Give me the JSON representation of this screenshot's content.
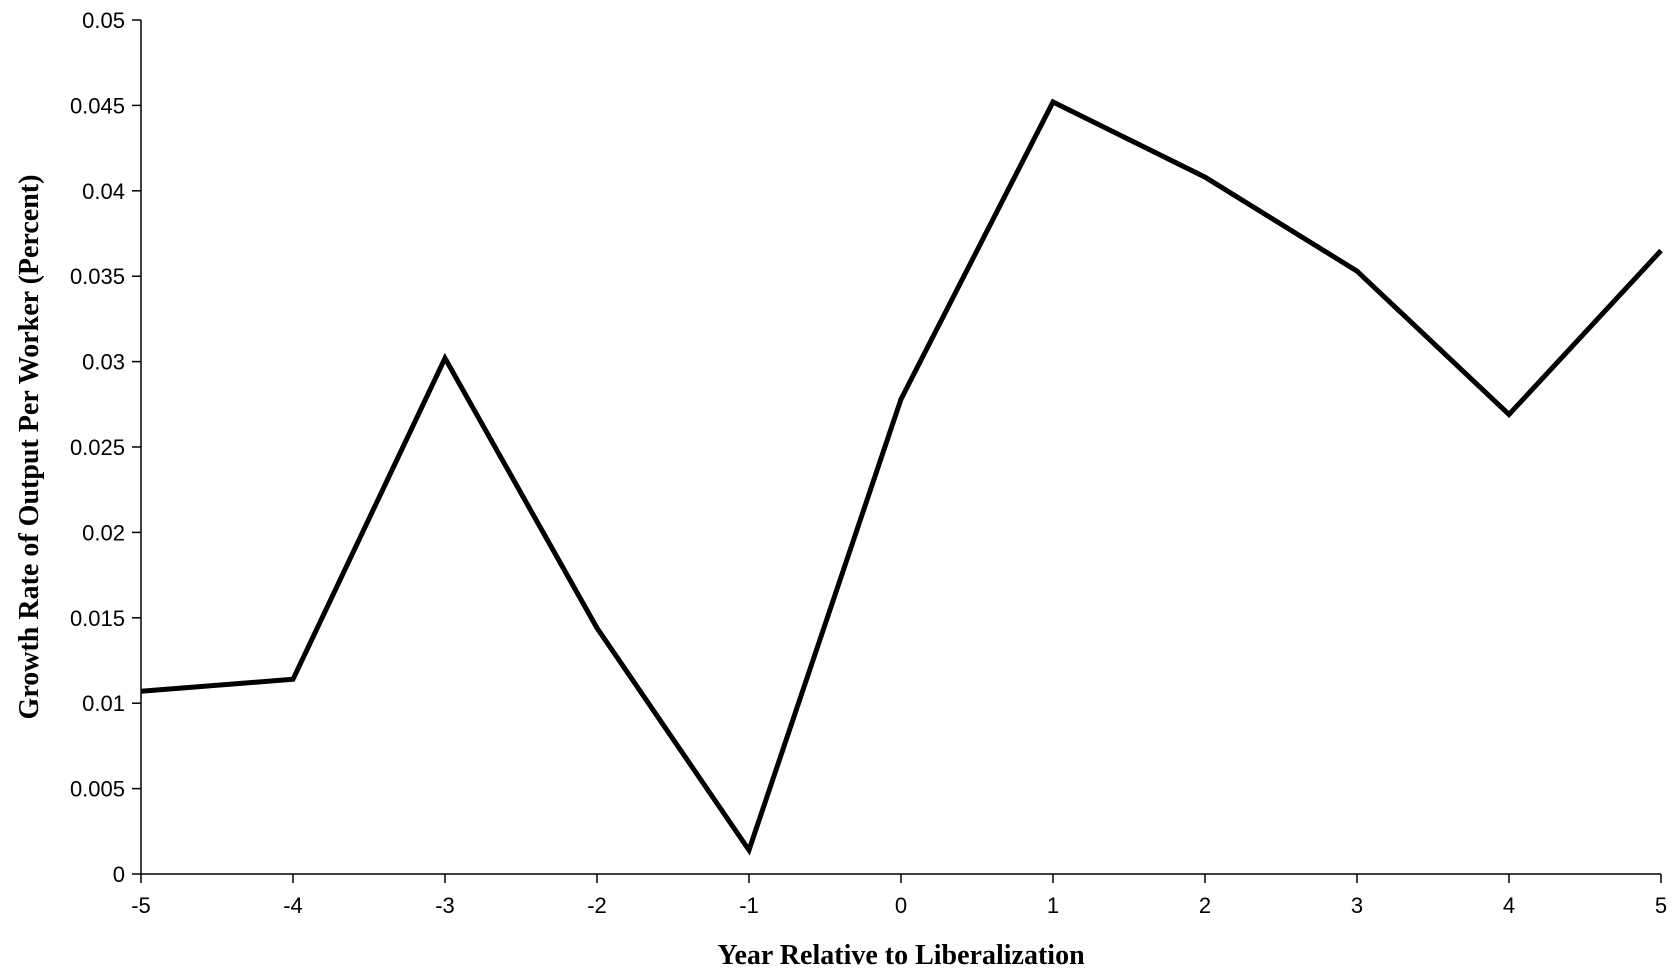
{
  "chart_data": {
    "type": "line",
    "x": [
      -5,
      -4,
      -3,
      -2,
      -1,
      0,
      1,
      2,
      3,
      4,
      5
    ],
    "series": [
      {
        "values": [
          0.0107,
          0.0114,
          0.0302,
          0.0144,
          0.0014,
          0.0278,
          0.0452,
          0.0408,
          0.0353,
          0.0269,
          0.0365
        ]
      }
    ],
    "xlabel": "Year Relative to Liberalization",
    "ylabel": "Growth Rate of Output Per Worker (Percent)",
    "xlim": [
      -5,
      5
    ],
    "ylim": [
      0,
      0.05
    ],
    "x_ticks": [
      "-5",
      "-4",
      "-3",
      "-2",
      "-1",
      "0",
      "1",
      "2",
      "3",
      "4",
      "5"
    ],
    "y_ticks": [
      "0",
      "0.005",
      "0.01",
      "0.015",
      "0.02",
      "0.025",
      "0.03",
      "0.035",
      "0.04",
      "0.045",
      "0.05"
    ],
    "grid": false,
    "line_color": "#000000"
  }
}
